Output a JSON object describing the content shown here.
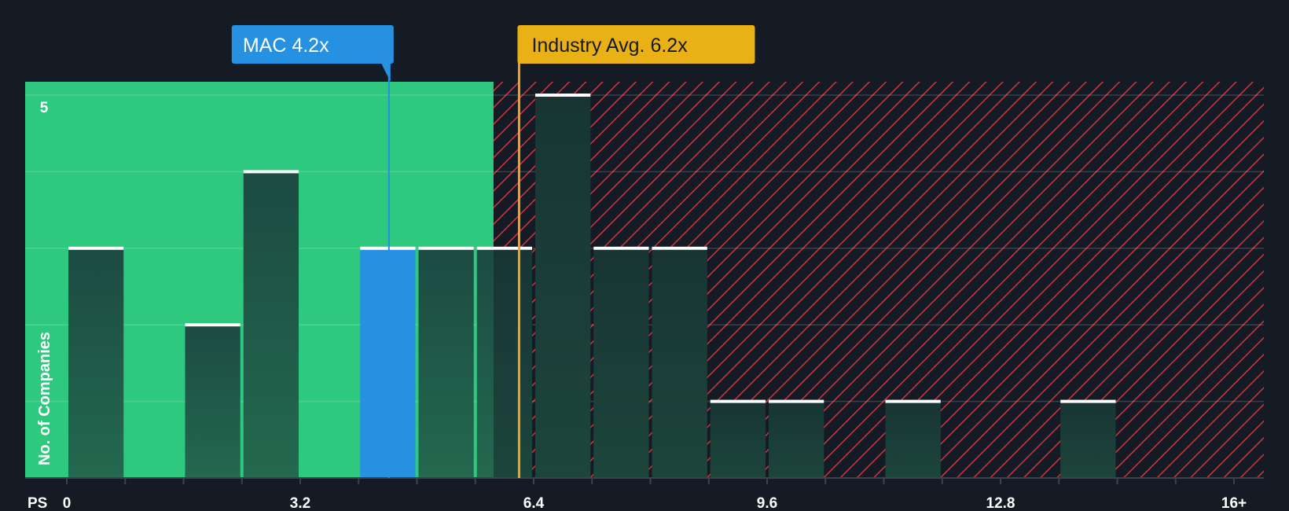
{
  "chart_data": {
    "type": "bar",
    "title": "",
    "xlabel": "PS",
    "ylabel": "No. of Companies",
    "x_ticks": [
      "0",
      "3.2",
      "6.4",
      "9.6",
      "12.8",
      "16+"
    ],
    "x_tick_values": [
      0,
      3.2,
      6.4,
      9.6,
      12.8,
      16
    ],
    "y_ticks": [
      "5"
    ],
    "ylim": [
      0,
      5
    ],
    "bin_width": 0.8,
    "bins": [
      {
        "start": 0.0,
        "count": 3,
        "highlight": false
      },
      {
        "start": 0.8,
        "count": 0,
        "highlight": false
      },
      {
        "start": 1.6,
        "count": 2,
        "highlight": false
      },
      {
        "start": 2.4,
        "count": 4,
        "highlight": false
      },
      {
        "start": 3.2,
        "count": 0,
        "highlight": false
      },
      {
        "start": 4.0,
        "count": 3,
        "highlight": true
      },
      {
        "start": 4.8,
        "count": 3,
        "highlight": false
      },
      {
        "start": 5.6,
        "count": 3,
        "highlight": false
      },
      {
        "start": 6.4,
        "count": 5,
        "highlight": false
      },
      {
        "start": 7.2,
        "count": 3,
        "highlight": false
      },
      {
        "start": 8.0,
        "count": 3,
        "highlight": false
      },
      {
        "start": 8.8,
        "count": 1,
        "highlight": false
      },
      {
        "start": 9.6,
        "count": 1,
        "highlight": false
      },
      {
        "start": 10.4,
        "count": 0,
        "highlight": false
      },
      {
        "start": 11.2,
        "count": 1,
        "highlight": false
      },
      {
        "start": 12.0,
        "count": 0,
        "highlight": false
      },
      {
        "start": 12.8,
        "count": 0,
        "highlight": false
      },
      {
        "start": 13.6,
        "count": 1,
        "highlight": false
      },
      {
        "start": 14.4,
        "count": 0,
        "highlight": false
      }
    ],
    "company": {
      "label": "MAC 4.2x",
      "value": 4.2
    },
    "industry": {
      "label": "Industry Avg. 6.2x",
      "value": 6.2
    },
    "fair_range_end": 5.85,
    "colors": {
      "background": "#151b24",
      "green_zone": "#2ec97e",
      "red_hatch": "#d0353d",
      "bar": "#1f4f45",
      "bar_highlight": "#2591e0",
      "bar_cap": "#ffffff",
      "company_callout": "#2591e0",
      "industry_callout": "#eab116",
      "industry_line": "#f4a227"
    }
  }
}
